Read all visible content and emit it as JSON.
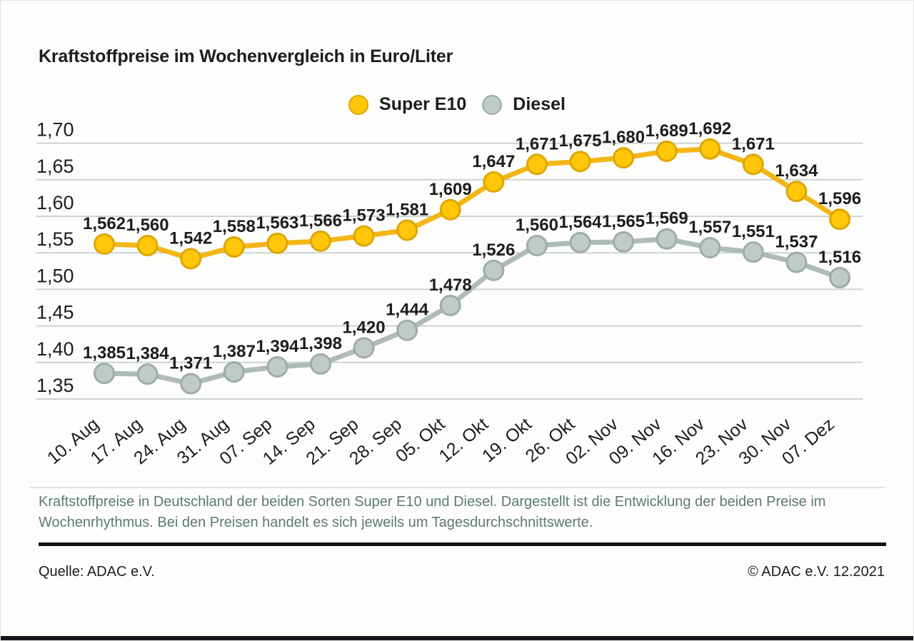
{
  "title": "Kraftstoffpreise im Wochenvergleich in Euro/Liter",
  "chart_data": {
    "type": "line",
    "x": [
      "10. Aug",
      "17. Aug",
      "24. Aug",
      "31. Aug",
      "07. Sep",
      "14. Sep",
      "21. Sep",
      "28. Sep",
      "05. Okt",
      "12. Okt",
      "19. Okt",
      "26. Okt",
      "02. Nov",
      "09. Nov",
      "16. Nov",
      "23. Nov",
      "30. Nov",
      "07. Dez"
    ],
    "series": [
      {
        "name": "Super E10",
        "values": [
          1.562,
          1.56,
          1.542,
          1.558,
          1.563,
          1.566,
          1.573,
          1.581,
          1.609,
          1.647,
          1.671,
          1.675,
          1.68,
          1.689,
          1.692,
          1.671,
          1.634,
          1.596
        ],
        "line_color": "#f2b617",
        "marker_fill": "#ffc60a",
        "marker_stroke": "#dfa600"
      },
      {
        "name": "Diesel",
        "values": [
          1.385,
          1.384,
          1.371,
          1.387,
          1.394,
          1.398,
          1.42,
          1.444,
          1.478,
          1.526,
          1.56,
          1.564,
          1.565,
          1.569,
          1.557,
          1.551,
          1.537,
          1.516
        ],
        "line_color": "#aebcb5",
        "marker_fill": "#bfcbc4",
        "marker_stroke": "#9eada6"
      }
    ],
    "title": "Kraftstoffpreise im Wochenvergleich in Euro/Liter",
    "xlabel": "",
    "ylabel": "Euro/Liter",
    "ylim": [
      1.35,
      1.7
    ],
    "ytick_step": 0.05,
    "ytick_labels": [
      "1,35",
      "1,40",
      "1,45",
      "1,50",
      "1,55",
      "1,60",
      "1,65",
      "1,70"
    ],
    "grid": true,
    "legend_position": "top-center",
    "value_labels": "comma-decimal-3",
    "colors": {
      "grid": "#cbd5cf",
      "text": "#1d1d1b",
      "caption_text": "#5e7a73"
    }
  },
  "caption": {
    "line1": "Kraftstoffpreise in Deutschland der beiden Sorten Super E10 und Diesel. Dargestellt ist die Entwicklung der beiden Preise im",
    "line2": "Wochenrhythmus. Bei den Preisen handelt es sich jeweils um Tagesdurchschnittswerte."
  },
  "footer": {
    "source": "Quelle: ADAC e.V.",
    "copyright": "© ADAC e.V. 12.2021"
  }
}
